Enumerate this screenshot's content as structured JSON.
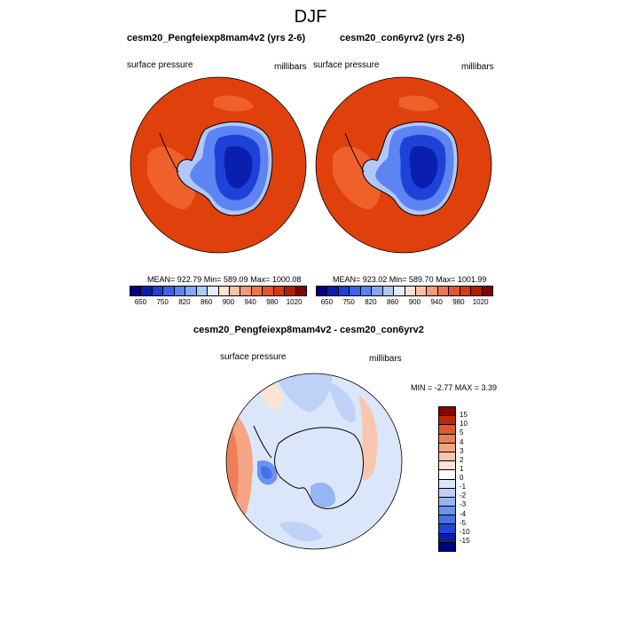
{
  "chart_data": [
    {
      "type": "heatmap",
      "projection": "south-polar-stereographic",
      "title": "cesm20_Pengfeiexp8mam4v2 (yrs 2-6)",
      "left_label": "surface pressure",
      "right_label": "millibars",
      "stats": "MEAN= 922.79  Min= 589.09  Max= 1000.08",
      "colorbar_labels": [
        "650",
        "750",
        "820",
        "860",
        "900",
        "940",
        "980",
        "1020"
      ]
    },
    {
      "type": "heatmap",
      "projection": "south-polar-stereographic",
      "title": "cesm20_con6yrv2 (yrs 2-6)",
      "left_label": "surface pressure",
      "right_label": "millibars",
      "stats": "MEAN= 923.02  Min= 589.70  Max= 1001.99",
      "colorbar_labels": [
        "650",
        "750",
        "820",
        "860",
        "900",
        "940",
        "980",
        "1020"
      ]
    },
    {
      "type": "heatmap",
      "projection": "south-polar-stereographic",
      "title": "cesm20_Pengfeiexp8mam4v2 - cesm20_con6yrv2",
      "left_label": "surface pressure",
      "right_label": "millibars",
      "stats": "MIN =  -2.77 MAX =   3.39",
      "colorbar_labels": [
        "15",
        "10",
        "5",
        "4",
        "3",
        "2",
        "1",
        "0",
        "-1",
        "-2",
        "-3",
        "-4",
        "-5",
        "-10",
        "-15"
      ]
    }
  ],
  "page": {
    "title": "DJF"
  },
  "colors": {
    "abs_scale": [
      "#000080",
      "#0a1fb0",
      "#1e42d8",
      "#3a63ec",
      "#5d84f2",
      "#85a6f4",
      "#b1c8f6",
      "#e4ecfb",
      "#fde2d2",
      "#f8c0a4",
      "#f29a78",
      "#ec7650",
      "#e4552d",
      "#d63b14",
      "#b01e04",
      "#880000"
    ],
    "diff_scale": [
      "#880000",
      "#c2260a",
      "#e4552d",
      "#ee7e58",
      "#f4a584",
      "#f8c6ae",
      "#fbe3d6",
      "#ffffff",
      "#dbe6fa",
      "#bed2f7",
      "#97b5f3",
      "#6d92ef",
      "#4571e9",
      "#1f45d6",
      "#0a1fa8",
      "#000080"
    ],
    "ocean_abs": "#e0400c",
    "land_outline": "#000000"
  }
}
